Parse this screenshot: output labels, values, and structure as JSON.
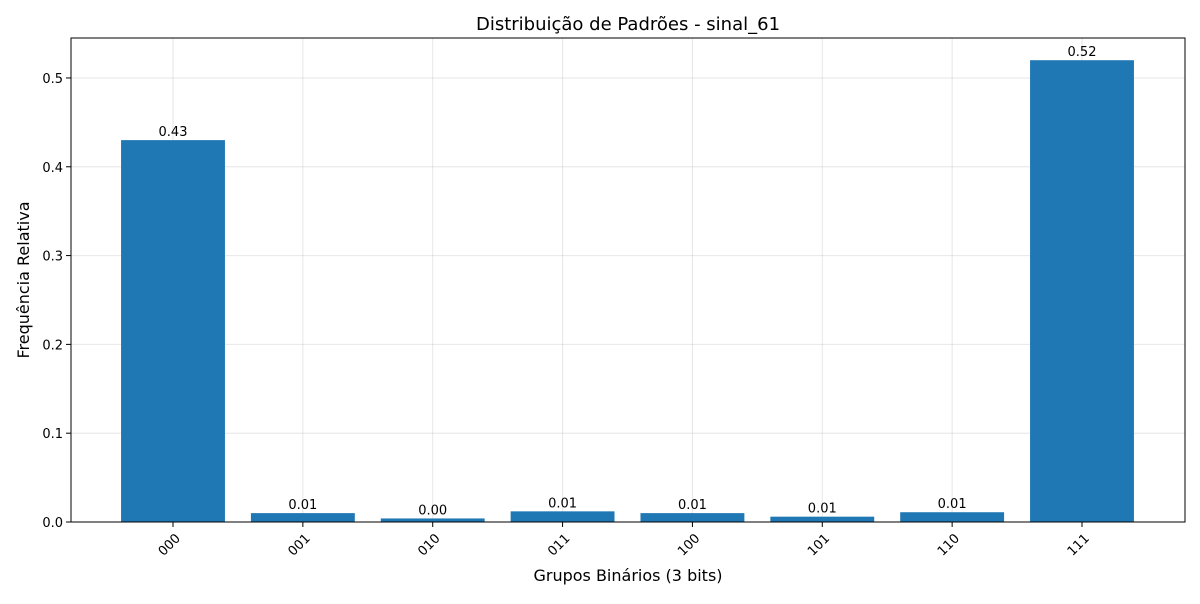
{
  "chart_data": {
    "type": "bar",
    "title": "Distribuição de Padrões - sinal_61",
    "xlabel": "Grupos Binários (3 bits)",
    "ylabel": "Frequência Relativa",
    "categories": [
      "000",
      "001",
      "010",
      "011",
      "100",
      "101",
      "110",
      "111"
    ],
    "values": [
      0.43,
      0.01,
      0.004,
      0.012,
      0.01,
      0.006,
      0.011,
      0.52
    ],
    "value_labels": [
      "0.43",
      "0.01",
      "0.00",
      "0.01",
      "0.01",
      "0.01",
      "0.01",
      "0.52"
    ],
    "ylim": [
      0,
      0.545
    ],
    "yticks": [
      0.0,
      0.1,
      0.2,
      0.3,
      0.4,
      0.5
    ],
    "ytick_labels": [
      "0.0",
      "0.1",
      "0.2",
      "0.3",
      "0.4",
      "0.5"
    ],
    "xtick_rotation_deg": 45,
    "grid": true,
    "legend": "none",
    "bar_color": "#1f77b4"
  }
}
